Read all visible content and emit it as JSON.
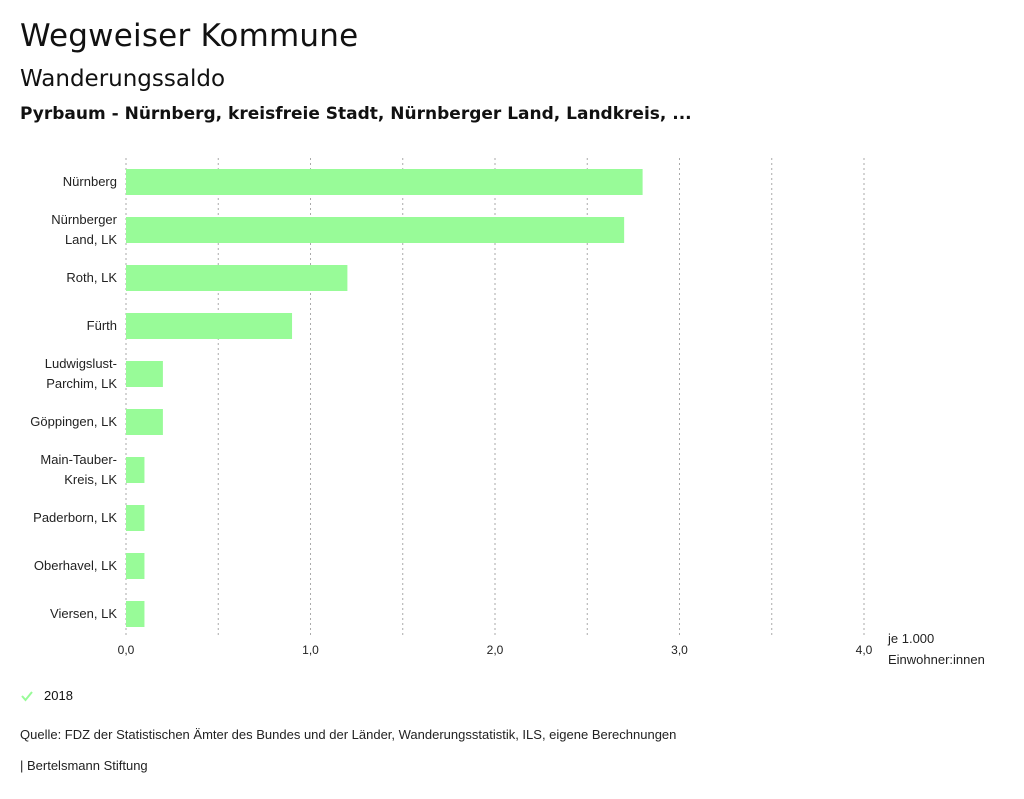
{
  "header": {
    "title": "Wegweiser Kommune",
    "subtitle": "Wanderungssaldo",
    "region": "Pyrbaum - Nürnberg, kreisfreie Stadt, Nürnberger Land, Landkreis, ..."
  },
  "colors": {
    "bar": "#98fb98",
    "grid": "#aaaaaa",
    "text": "#222222"
  },
  "chart_data": {
    "type": "bar",
    "orientation": "horizontal",
    "categories": [
      [
        "Nürnberg"
      ],
      [
        "Nürnberger",
        "Land, LK"
      ],
      [
        "Roth, LK"
      ],
      [
        "Fürth"
      ],
      [
        "Ludwigslust-",
        "Parchim, LK"
      ],
      [
        "Göppingen, LK"
      ],
      [
        "Main-Tauber-",
        "Kreis, LK"
      ],
      [
        "Paderborn, LK"
      ],
      [
        "Oberhavel, LK"
      ],
      [
        "Viersen, LK"
      ]
    ],
    "series": [
      {
        "name": "2018",
        "values": [
          2.8,
          2.7,
          1.2,
          0.9,
          0.2,
          0.2,
          0.1,
          0.1,
          0.1,
          0.1
        ]
      }
    ],
    "xlim": [
      0,
      4.0
    ],
    "xticks": [
      0.0,
      1.0,
      2.0,
      3.0,
      4.0
    ],
    "xtick_labels": [
      "0,0",
      "1,0",
      "2,0",
      "3,0",
      "4,0"
    ],
    "gridlines": [
      0,
      0.5,
      1.0,
      1.5,
      2.0,
      2.5,
      3.0,
      3.5,
      4.0
    ],
    "xlabel": [
      "je 1.000",
      "Einwohner:innen"
    ]
  },
  "legend": {
    "label": "2018",
    "icon": "check-icon"
  },
  "footer": {
    "source": "Quelle: FDZ der Statistischen Ämter des Bundes und der Länder, Wanderungsstatistik, ILS, eigene Berechnungen",
    "brand": "| Bertelsmann Stiftung"
  }
}
